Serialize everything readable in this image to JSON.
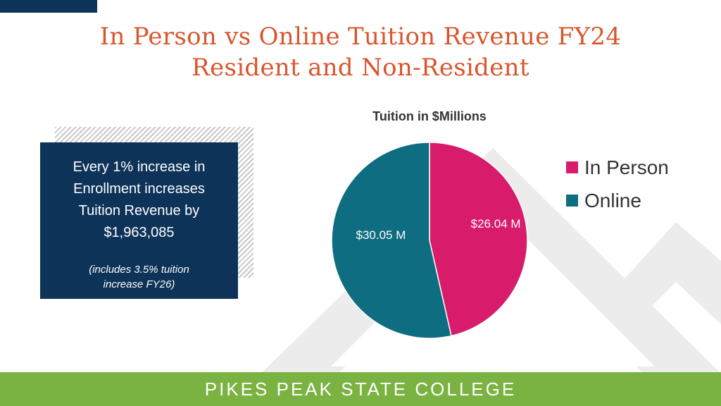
{
  "header": {
    "title_line1": "In Person vs Online Tuition Revenue FY24",
    "title_line2": "Resident and Non-Resident"
  },
  "info_box": {
    "main_line1": "Every 1% increase in",
    "main_line2": "Enrollment increases",
    "main_line3": "Tuition Revenue by",
    "main_line4": "$1,963,085",
    "note": "(includes 3.5% tuition increase FY26)"
  },
  "chart_data": {
    "type": "pie",
    "title": "Tuition in $Millions",
    "slices": [
      {
        "name": "In Person",
        "value": 26.04,
        "label": "$26.04 M",
        "color": "#d81b6b"
      },
      {
        "name": "Online",
        "value": 30.05,
        "label": "$30.05 M",
        "color": "#0e6d80"
      }
    ],
    "legend_position": "right"
  },
  "footer": {
    "text": "PIKES PEAK STATE COLLEGE"
  },
  "colors": {
    "brand_navy": "#0d3358",
    "title_orange": "#d9552c",
    "footer_green": "#7bb342"
  }
}
